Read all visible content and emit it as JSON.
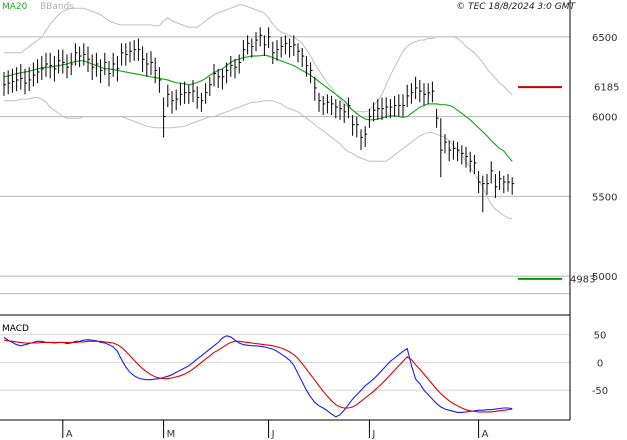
{
  "header": {
    "legend_ma": "MA20",
    "legend_bb": "BBands",
    "copyright": "© TEC 18/8/2024 3:0 GMT"
  },
  "colors": {
    "ma": "#22aa22",
    "bb": "#c0c0c0",
    "price": "#000000",
    "macd": "#1a1aff",
    "signal": "#e00000",
    "resistance": "#cc0000",
    "support": "#009900",
    "grid": "#b8b8b8"
  },
  "chart_data": [
    {
      "type": "ohlc",
      "title": "",
      "ylim": [
        4800,
        6700
      ],
      "y_ticks": [
        {
          "value": 6500,
          "label": "6500"
        },
        {
          "value": 6000,
          "label": "6000"
        },
        {
          "value": 5500,
          "label": "5500"
        },
        {
          "value": 5000,
          "label": "5000"
        }
      ],
      "x_labels": [
        {
          "index": 14,
          "label": "A"
        },
        {
          "index": 38,
          "label": "M"
        },
        {
          "index": 63,
          "label": "J"
        },
        {
          "index": 87,
          "label": "J"
        },
        {
          "index": 113,
          "label": "A"
        }
      ],
      "close": [
        6200,
        6210,
        6220,
        6230,
        6240,
        6210,
        6230,
        6260,
        6280,
        6300,
        6330,
        6320,
        6300,
        6350,
        6340,
        6310,
        6330,
        6400,
        6380,
        6390,
        6360,
        6310,
        6330,
        6290,
        6340,
        6270,
        6330,
        6300,
        6400,
        6390,
        6410,
        6420,
        6420,
        6360,
        6330,
        6340,
        6290,
        6230,
        6000,
        6140,
        6100,
        6110,
        6140,
        6150,
        6150,
        6160,
        6120,
        6100,
        6150,
        6200,
        6270,
        6250,
        6250,
        6290,
        6320,
        6310,
        6340,
        6420,
        6460,
        6440,
        6480,
        6510,
        6450,
        6500,
        6400,
        6420,
        6440,
        6460,
        6440,
        6450,
        6410,
        6380,
        6320,
        6290,
        6180,
        6100,
        6080,
        6090,
        6080,
        6060,
        6050,
        6030,
        6070,
        5950,
        5950,
        5870,
        5890,
        6000,
        6040,
        6050,
        6050,
        6060,
        6060,
        6070,
        6070,
        6070,
        6130,
        6150,
        6180,
        6160,
        6140,
        6150,
        6160,
        5990,
        5790,
        5840,
        5790,
        5800,
        5790,
        5770,
        5750,
        5720,
        5710,
        5590,
        5580,
        5580,
        5660,
        5560,
        5610,
        5590,
        5590,
        5580
      ],
      "series": [
        {
          "name": "MA20",
          "values": [
            6250,
            6255,
            6262,
            6270,
            6275,
            6280,
            6285,
            6292,
            6300,
            6305,
            6310,
            6310,
            6315,
            6320,
            6325,
            6330,
            6340,
            6345,
            6350,
            6350,
            6340,
            6330,
            6320,
            6310,
            6300,
            6300,
            6295,
            6290,
            6285,
            6280,
            6275,
            6270,
            6265,
            6260,
            6255,
            6250,
            6245,
            6240,
            6235,
            6230,
            6220,
            6212,
            6210,
            6205,
            6200,
            6205,
            6215,
            6225,
            6240,
            6260,
            6275,
            6290,
            6300,
            6320,
            6340,
            6355,
            6360,
            6370,
            6375,
            6380,
            6380,
            6382,
            6385,
            6380,
            6370,
            6360,
            6350,
            6340,
            6330,
            6320,
            6305,
            6290,
            6275,
            6260,
            6240,
            6220,
            6200,
            6180,
            6160,
            6140,
            6120,
            6100,
            6070,
            6040,
            6020,
            6000,
            5985,
            5980,
            5980,
            5985,
            5990,
            6000,
            6005,
            6005,
            6000,
            5995,
            6000,
            6020,
            6040,
            6060,
            6070,
            6080,
            6080,
            6080,
            6075,
            6075,
            6070,
            6060,
            6040,
            6020,
            6000,
            5980,
            5955,
            5930,
            5905,
            5880,
            5850,
            5825,
            5800,
            5785,
            5750,
            5720
          ]
        },
        {
          "name": "BB Upper",
          "values": [
            6400,
            6400,
            6400,
            6400,
            6400,
            6420,
            6440,
            6460,
            6480,
            6500,
            6540,
            6580,
            6610,
            6640,
            6660,
            6670,
            6680,
            6680,
            6680,
            6680,
            6670,
            6660,
            6650,
            6640,
            6620,
            6600,
            6590,
            6580,
            6575,
            6575,
            6575,
            6575,
            6575,
            6575,
            6575,
            6575,
            6570,
            6570,
            6600,
            6620,
            6600,
            6590,
            6580,
            6570,
            6560,
            6560,
            6560,
            6580,
            6600,
            6620,
            6640,
            6650,
            6660,
            6670,
            6680,
            6690,
            6700,
            6700,
            6690,
            6680,
            6670,
            6660,
            6650,
            6620,
            6580,
            6550,
            6530,
            6520,
            6510,
            6500,
            6480,
            6460,
            6420,
            6380,
            6330,
            6290,
            6250,
            6210,
            6180,
            6140,
            6110,
            6080,
            6060,
            6040,
            6030,
            6030,
            6030,
            6040,
            6070,
            6100,
            6140,
            6200,
            6260,
            6310,
            6360,
            6410,
            6440,
            6460,
            6470,
            6480,
            6480,
            6490,
            6490,
            6500,
            6500,
            6500,
            6500,
            6500,
            6490,
            6470,
            6440,
            6420,
            6400,
            6370,
            6340,
            6300,
            6270,
            6240,
            6210,
            6190,
            6160,
            6140
          ]
        },
        {
          "name": "BB Lower",
          "values": [
            6100,
            6100,
            6100,
            6100,
            6110,
            6110,
            6110,
            6120,
            6120,
            6110,
            6090,
            6060,
            6040,
            6020,
            6000,
            5990,
            5990,
            5990,
            5990,
            6000,
            6000,
            6000,
            6000,
            6000,
            6000,
            6000,
            6000,
            6000,
            6000,
            5990,
            5980,
            5970,
            5960,
            5950,
            5940,
            5935,
            5930,
            5930,
            5930,
            5930,
            5930,
            5935,
            5935,
            5940,
            5950,
            5960,
            5970,
            5980,
            5990,
            6000,
            6000,
            6010,
            6020,
            6030,
            6040,
            6050,
            6060,
            6070,
            6080,
            6090,
            6090,
            6095,
            6100,
            6100,
            6100,
            6090,
            6080,
            6060,
            6050,
            6040,
            6030,
            6010,
            5990,
            5970,
            5950,
            5930,
            5910,
            5890,
            5870,
            5850,
            5830,
            5800,
            5780,
            5770,
            5750,
            5740,
            5730,
            5720,
            5720,
            5720,
            5720,
            5720,
            5740,
            5760,
            5780,
            5800,
            5820,
            5840,
            5860,
            5880,
            5890,
            5900,
            5900,
            5890,
            5880,
            5870,
            5850,
            5820,
            5790,
            5760,
            5720,
            5680,
            5640,
            5600,
            5560,
            5500,
            5450,
            5420,
            5400,
            5380,
            5365,
            5360
          ]
        },
        {
          "name": "High",
          "values": [
            6280,
            6290,
            6300,
            6310,
            6330,
            6300,
            6310,
            6340,
            6360,
            6380,
            6400,
            6400,
            6380,
            6420,
            6420,
            6390,
            6400,
            6460,
            6440,
            6460,
            6440,
            6390,
            6400,
            6360,
            6400,
            6350,
            6400,
            6380,
            6460,
            6460,
            6470,
            6480,
            6490,
            6440,
            6400,
            6410,
            6370,
            6310,
            6120,
            6200,
            6160,
            6170,
            6210,
            6220,
            6200,
            6230,
            6190,
            6150,
            6210,
            6250,
            6330,
            6300,
            6300,
            6340,
            6380,
            6360,
            6390,
            6480,
            6510,
            6490,
            6530,
            6560,
            6510,
            6560,
            6470,
            6480,
            6500,
            6510,
            6490,
            6510,
            6460,
            6430,
            6380,
            6340,
            6250,
            6150,
            6130,
            6140,
            6130,
            6110,
            6100,
            6080,
            6120,
            6010,
            6000,
            5920,
            5940,
            6050,
            6090,
            6110,
            6120,
            6120,
            6110,
            6130,
            6140,
            6140,
            6200,
            6210,
            6250,
            6230,
            6210,
            6210,
            6220,
            6050,
            5990,
            5890,
            5850,
            5850,
            5840,
            5820,
            5810,
            5780,
            5760,
            5660,
            5630,
            5640,
            5720,
            5640,
            5660,
            5630,
            5640,
            5620
          ]
        },
        {
          "name": "Low",
          "values": [
            6130,
            6140,
            6150,
            6160,
            6170,
            6140,
            6160,
            6190,
            6210,
            6230,
            6250,
            6240,
            6220,
            6270,
            6270,
            6240,
            6260,
            6320,
            6310,
            6320,
            6280,
            6230,
            6250,
            6210,
            6260,
            6190,
            6250,
            6220,
            6320,
            6320,
            6340,
            6350,
            6350,
            6280,
            6250,
            6260,
            6210,
            6150,
            5870,
            6060,
            6020,
            6040,
            6070,
            6080,
            6080,
            6090,
            6050,
            6030,
            6080,
            6130,
            6190,
            6180,
            6170,
            6210,
            6250,
            6240,
            6270,
            6350,
            6390,
            6370,
            6410,
            6440,
            6380,
            6430,
            6330,
            6350,
            6370,
            6390,
            6370,
            6380,
            6340,
            6310,
            6250,
            6210,
            6100,
            6030,
            6010,
            6020,
            6010,
            5990,
            5980,
            5960,
            5990,
            5880,
            5870,
            5790,
            5810,
            5930,
            5970,
            5980,
            5980,
            5990,
            5990,
            6000,
            6000,
            6000,
            6060,
            6080,
            6110,
            6090,
            6070,
            6080,
            6090,
            5930,
            5620,
            5770,
            5720,
            5730,
            5720,
            5700,
            5680,
            5650,
            5640,
            5520,
            5400,
            5510,
            5580,
            5490,
            5540,
            5520,
            5530,
            5510
          ]
        }
      ],
      "levels": [
        {
          "name": "resistance",
          "value": 6185,
          "label": "6185"
        },
        {
          "name": "support",
          "value": 4983,
          "label": "4983"
        }
      ]
    },
    {
      "type": "line",
      "title": "MACD",
      "ylim": [
        -100,
        80
      ],
      "y_ticks": [
        {
          "value": 50,
          "label": "50"
        },
        {
          "value": 0,
          "label": "0"
        },
        {
          "value": -50,
          "label": "-50"
        }
      ],
      "series": [
        {
          "name": "MACD",
          "values": [
            45,
            40,
            36,
            32,
            30,
            32,
            34,
            36,
            38,
            38,
            36,
            36,
            35,
            36,
            36,
            34,
            35,
            38,
            38,
            40,
            41,
            40,
            39,
            36,
            35,
            32,
            28,
            20,
            5,
            -8,
            -18,
            -24,
            -28,
            -30,
            -31,
            -31,
            -30,
            -29,
            -27,
            -25,
            -22,
            -18,
            -14,
            -10,
            -6,
            0,
            6,
            12,
            18,
            24,
            30,
            36,
            44,
            48,
            46,
            40,
            35,
            32,
            31,
            30,
            30,
            29,
            28,
            26,
            24,
            20,
            15,
            10,
            4,
            -5,
            -20,
            -35,
            -50,
            -62,
            -72,
            -78,
            -82,
            -87,
            -93,
            -98,
            -94,
            -86,
            -76,
            -66,
            -58,
            -50,
            -42,
            -36,
            -30,
            -22,
            -14,
            -6,
            2,
            8,
            14,
            20,
            25,
            -5,
            -30,
            -38,
            -50,
            -58,
            -66,
            -74,
            -80,
            -84,
            -86,
            -88,
            -90,
            -90,
            -89,
            -88,
            -87,
            -86,
            -86,
            -85,
            -85,
            -84,
            -83,
            -82,
            -82,
            -83
          ]
        },
        {
          "name": "Signal",
          "values": [
            40,
            39,
            38,
            37,
            36,
            35,
            35,
            35,
            35,
            36,
            36,
            36,
            36,
            36,
            36,
            36,
            36,
            36,
            37,
            37,
            38,
            38,
            38,
            38,
            37,
            36,
            35,
            32,
            27,
            20,
            12,
            4,
            -4,
            -11,
            -17,
            -22,
            -26,
            -28,
            -29,
            -29,
            -28,
            -26,
            -24,
            -21,
            -17,
            -12,
            -6,
            0,
            6,
            12,
            18,
            22,
            27,
            32,
            36,
            38,
            38,
            37,
            36,
            35,
            34,
            33,
            32,
            31,
            30,
            28,
            26,
            23,
            19,
            14,
            7,
            -2,
            -12,
            -22,
            -32,
            -42,
            -52,
            -61,
            -69,
            -76,
            -80,
            -82,
            -82,
            -80,
            -76,
            -70,
            -64,
            -58,
            -52,
            -45,
            -38,
            -30,
            -22,
            -14,
            -6,
            2,
            10,
            5,
            -4,
            -12,
            -21,
            -30,
            -39,
            -48,
            -56,
            -63,
            -69,
            -74,
            -78,
            -82,
            -85,
            -87,
            -88,
            -89,
            -89,
            -89,
            -89,
            -88,
            -87,
            -86,
            -85,
            -84
          ]
        }
      ]
    }
  ]
}
